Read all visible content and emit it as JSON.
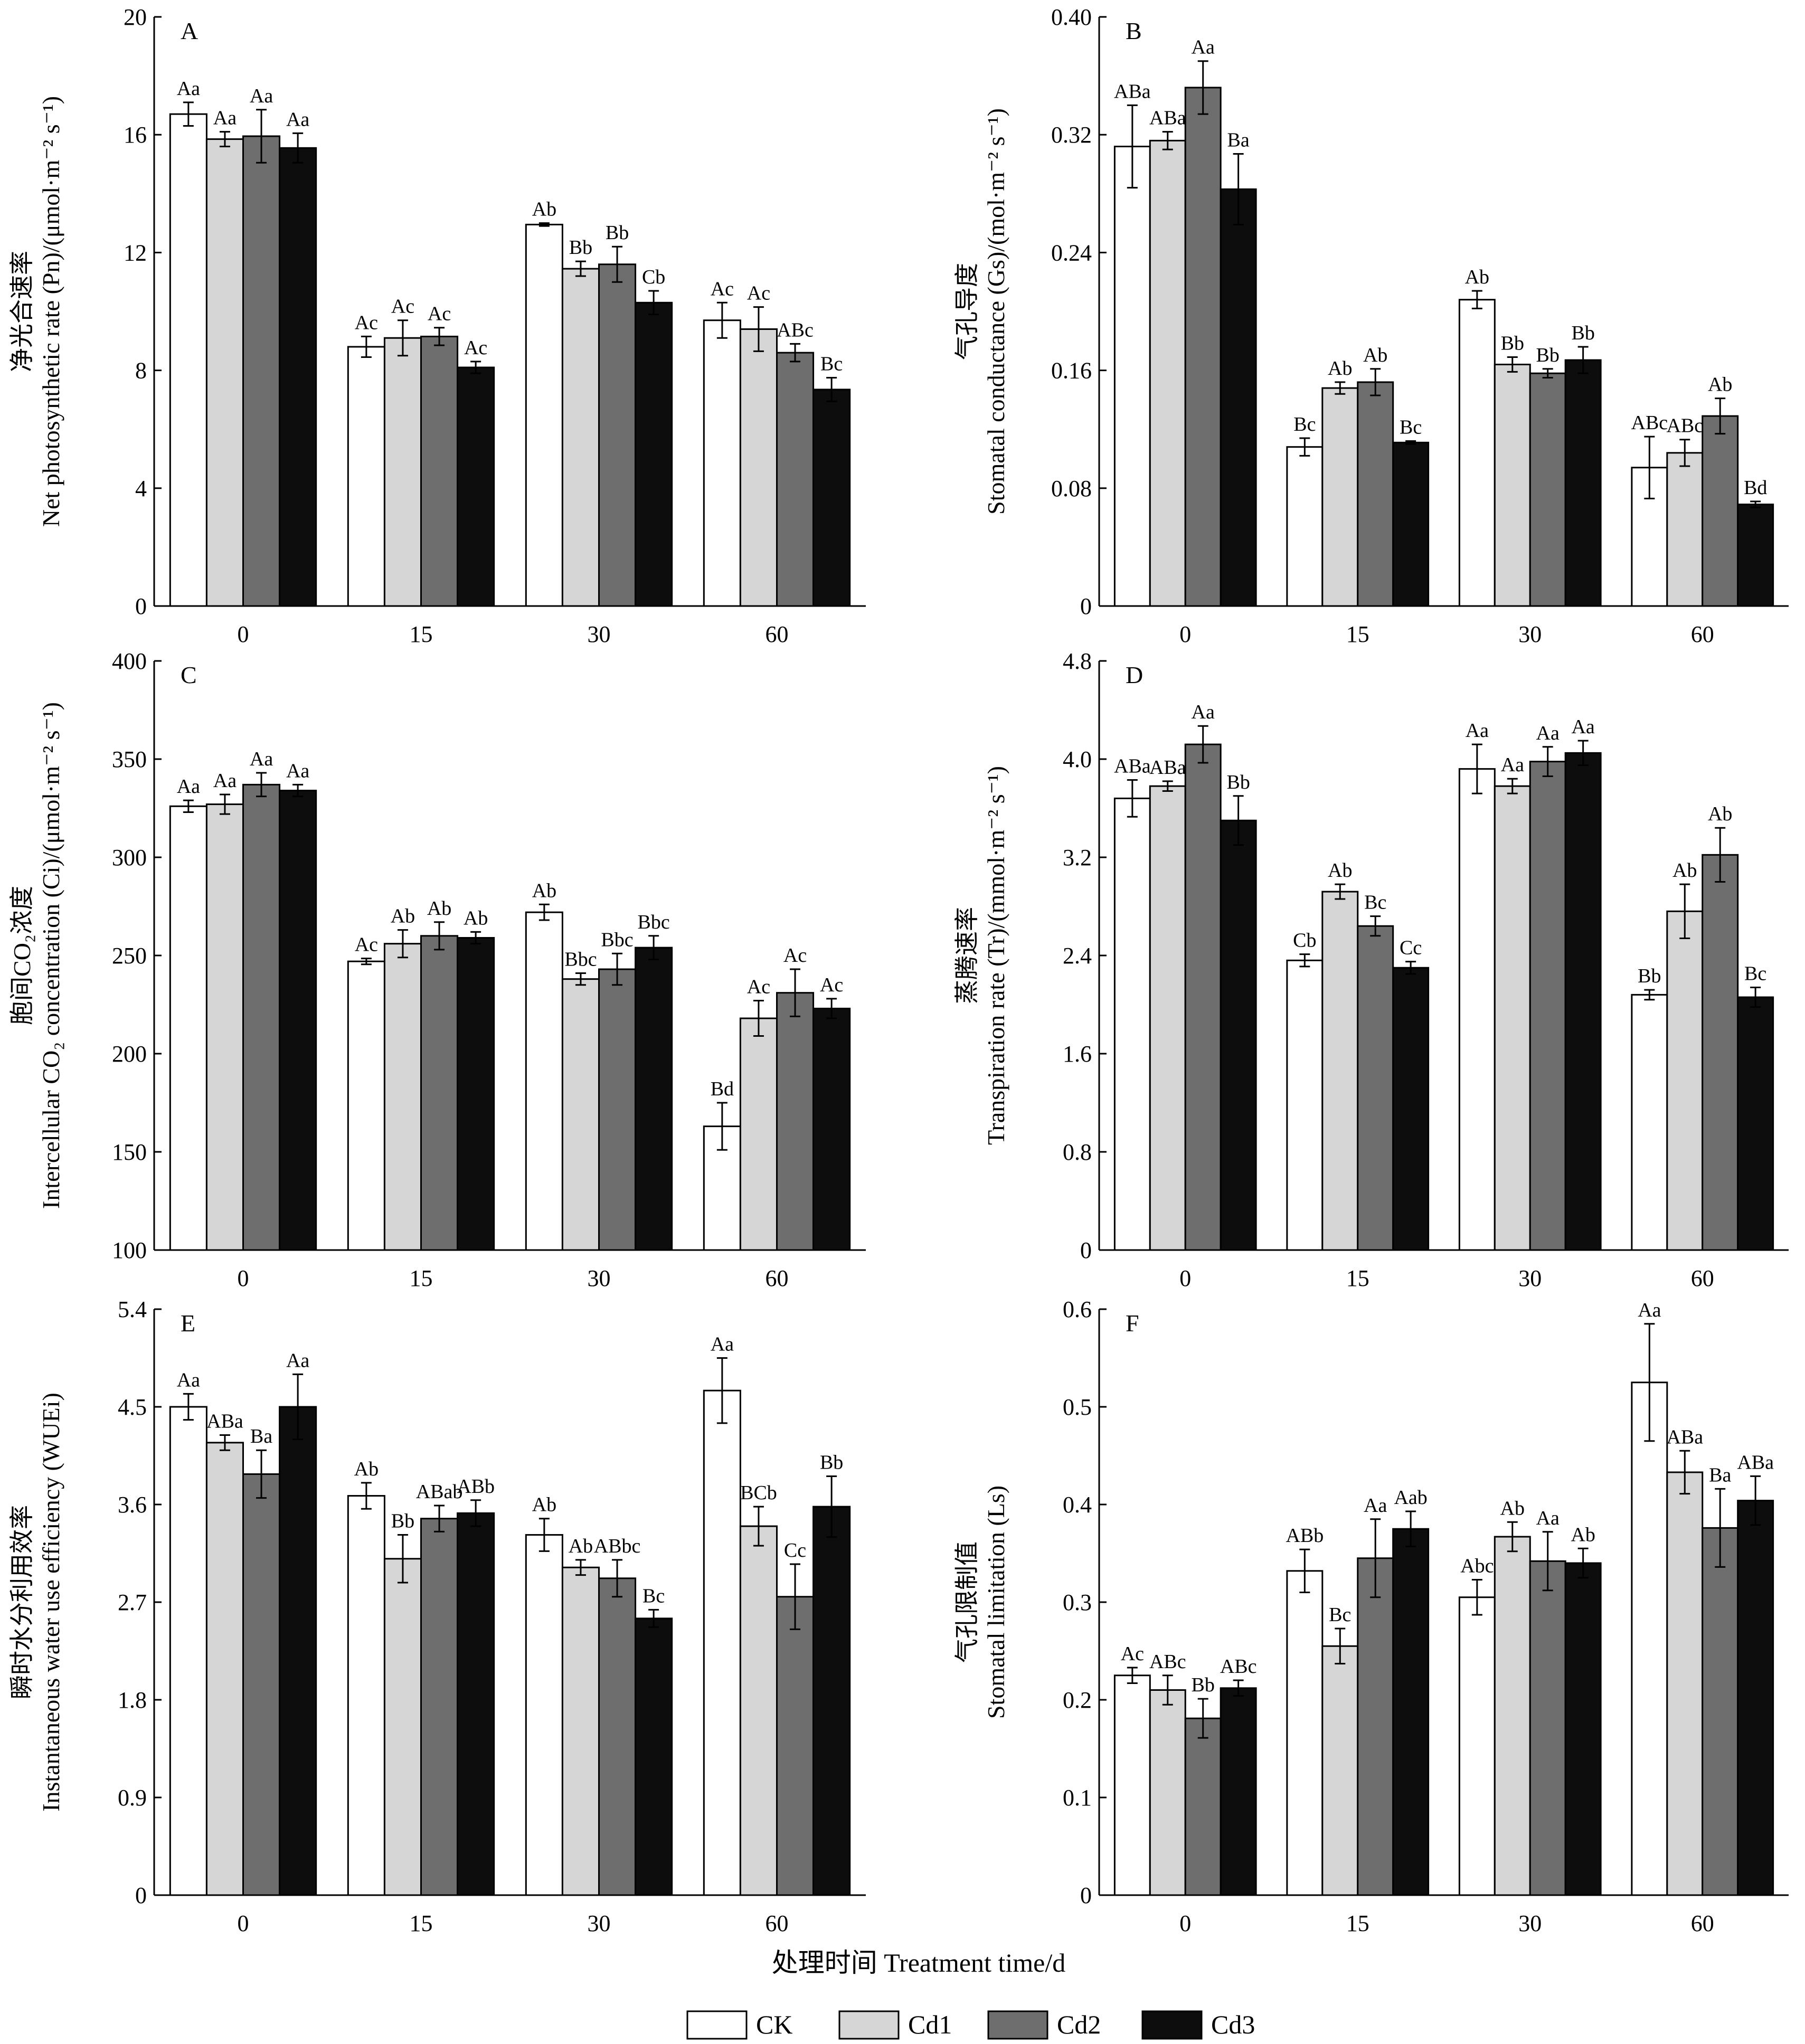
{
  "figure": {
    "x_title": "处理时间 Treatment time/d",
    "legend": [
      {
        "label": "CK",
        "color": "#ffffff"
      },
      {
        "label": "Cd1",
        "color": "#d6d6d6"
      },
      {
        "label": "Cd2",
        "color": "#6e6e6e"
      },
      {
        "label": "Cd3",
        "color": "#0d0d0d"
      }
    ]
  },
  "chart_data": [
    {
      "type": "bar",
      "panel": "A",
      "ylabel_cn": "净光合速率",
      "ylabel_en": "Net photosynthetic rate (Pn)/(μmol·m⁻² s⁻¹)",
      "ylim": [
        0,
        20
      ],
      "yticks": [
        "0",
        "4",
        "8",
        "12",
        "16",
        "20"
      ],
      "categories": [
        "0",
        "15",
        "30",
        "60"
      ],
      "series": [
        {
          "name": "CK",
          "values": [
            16.7,
            8.8,
            12.95,
            9.7
          ],
          "errors": [
            0.4,
            0.35,
            0.05,
            0.6
          ],
          "labels": [
            "Aa",
            "Ac",
            "Ab",
            "Ac"
          ]
        },
        {
          "name": "Cd1",
          "values": [
            15.85,
            9.1,
            11.45,
            9.4
          ],
          "errors": [
            0.25,
            0.6,
            0.25,
            0.75
          ],
          "labels": [
            "Aa",
            "Ac",
            "Bb",
            "Ac"
          ]
        },
        {
          "name": "Cd2",
          "values": [
            15.95,
            9.15,
            11.6,
            8.6
          ],
          "errors": [
            0.9,
            0.3,
            0.6,
            0.3
          ],
          "labels": [
            "Aa",
            "Ac",
            "Bb",
            "ABc"
          ]
        },
        {
          "name": "Cd3",
          "values": [
            15.55,
            8.1,
            10.3,
            7.35
          ],
          "errors": [
            0.5,
            0.2,
            0.4,
            0.4
          ],
          "labels": [
            "Aa",
            "Ac",
            "Cb",
            "Bc"
          ]
        }
      ]
    },
    {
      "type": "bar",
      "panel": "B",
      "ylabel_cn": "气孔导度",
      "ylabel_en": "Stomatal conductance (Gs)/(mol·m⁻² s⁻¹)",
      "ylim": [
        0,
        0.4
      ],
      "yticks": [
        "0",
        "0.08",
        "0.16",
        "0.24",
        "0.32",
        "0.40"
      ],
      "categories": [
        "0",
        "15",
        "30",
        "60"
      ],
      "series": [
        {
          "name": "CK",
          "values": [
            0.312,
            0.108,
            0.208,
            0.094
          ],
          "errors": [
            0.028,
            0.006,
            0.006,
            0.021
          ],
          "labels": [
            "ABa",
            "Bc",
            "Ab",
            "ABc"
          ]
        },
        {
          "name": "Cd1",
          "values": [
            0.316,
            0.148,
            0.164,
            0.104
          ],
          "errors": [
            0.006,
            0.004,
            0.005,
            0.009
          ],
          "labels": [
            "ABa",
            "Ab",
            "Bb",
            "ABc"
          ]
        },
        {
          "name": "Cd2",
          "values": [
            0.352,
            0.152,
            0.158,
            0.129
          ],
          "errors": [
            0.018,
            0.009,
            0.003,
            0.012
          ],
          "labels": [
            "Aa",
            "Ab",
            "Bb",
            "Ab"
          ]
        },
        {
          "name": "Cd3",
          "values": [
            0.283,
            0.111,
            0.167,
            0.069
          ],
          "errors": [
            0.024,
            0.001,
            0.009,
            0.002
          ],
          "labels": [
            "Ba",
            "Bc",
            "Bb",
            "Bd"
          ]
        }
      ]
    },
    {
      "type": "bar",
      "panel": "C",
      "ylabel_cn": "胞间CO₂浓度",
      "ylabel_en": "Intercellular CO₂ concentration (Ci)/(μmol·m⁻² s⁻¹)",
      "ylim": [
        100,
        400
      ],
      "yticks": [
        "100",
        "150",
        "200",
        "250",
        "300",
        "350",
        "400"
      ],
      "categories": [
        "0",
        "15",
        "30",
        "60"
      ],
      "series": [
        {
          "name": "CK",
          "values": [
            326,
            247,
            272,
            163
          ],
          "errors": [
            3,
            1.5,
            4,
            12
          ],
          "labels": [
            "Aa",
            "Ac",
            "Ab",
            "Bd"
          ]
        },
        {
          "name": "Cd1",
          "values": [
            327,
            256,
            238,
            218
          ],
          "errors": [
            5,
            7,
            3,
            9
          ],
          "labels": [
            "Aa",
            "Ab",
            "Bbc",
            "Ac"
          ]
        },
        {
          "name": "Cd2",
          "values": [
            337,
            260,
            243,
            231
          ],
          "errors": [
            6,
            7,
            8,
            12
          ],
          "labels": [
            "Aa",
            "Ab",
            "Bbc",
            "Ac"
          ]
        },
        {
          "name": "Cd3",
          "values": [
            334,
            259,
            254,
            223
          ],
          "errors": [
            3,
            3,
            6,
            5
          ],
          "labels": [
            "Aa",
            "Ab",
            "Bbc",
            "Ac"
          ]
        }
      ]
    },
    {
      "type": "bar",
      "panel": "D",
      "ylabel_cn": "蒸腾速率",
      "ylabel_en": "Transpiration rate (Tr)/(mmol·m⁻² s⁻¹)",
      "ylim": [
        0,
        4.8
      ],
      "yticks": [
        "0",
        "0.8",
        "1.6",
        "2.4",
        "3.2",
        "4.0",
        "4.8"
      ],
      "categories": [
        "0",
        "15",
        "30",
        "60"
      ],
      "series": [
        {
          "name": "CK",
          "values": [
            3.68,
            2.36,
            3.92,
            2.08
          ],
          "errors": [
            0.15,
            0.05,
            0.2,
            0.04
          ],
          "labels": [
            "ABa",
            "Cb",
            "Aa",
            "Bb"
          ]
        },
        {
          "name": "Cd1",
          "values": [
            3.78,
            2.92,
            3.78,
            2.76
          ],
          "errors": [
            0.04,
            0.06,
            0.06,
            0.22
          ],
          "labels": [
            "ABa",
            "Ab",
            "Aa",
            "Ab"
          ]
        },
        {
          "name": "Cd2",
          "values": [
            4.12,
            2.64,
            3.98,
            3.22
          ],
          "errors": [
            0.15,
            0.08,
            0.12,
            0.22
          ],
          "labels": [
            "Aa",
            "Bc",
            "Aa",
            "Ab"
          ]
        },
        {
          "name": "Cd3",
          "values": [
            3.5,
            2.3,
            4.05,
            2.06
          ],
          "errors": [
            0.2,
            0.05,
            0.1,
            0.08
          ],
          "labels": [
            "Bb",
            "Cc",
            "Aa",
            "Bc"
          ]
        }
      ]
    },
    {
      "type": "bar",
      "panel": "E",
      "ylabel_cn": "瞬时水分利用效率",
      "ylabel_en": "Instantaneous water use efficiency (WUEi)",
      "ylim": [
        0,
        5.4
      ],
      "yticks": [
        "0",
        "0.9",
        "1.8",
        "2.7",
        "3.6",
        "4.5",
        "5.4"
      ],
      "categories": [
        "0",
        "15",
        "30",
        "60"
      ],
      "series": [
        {
          "name": "CK",
          "values": [
            4.5,
            3.68,
            3.32,
            4.65
          ],
          "errors": [
            0.12,
            0.12,
            0.15,
            0.3
          ],
          "labels": [
            "Aa",
            "Ab",
            "Ab",
            "Aa"
          ]
        },
        {
          "name": "Cd1",
          "values": [
            4.17,
            3.1,
            3.02,
            3.4
          ],
          "errors": [
            0.07,
            0.22,
            0.07,
            0.18
          ],
          "labels": [
            "ABa",
            "Bb",
            "Ab",
            "BCb"
          ]
        },
        {
          "name": "Cd2",
          "values": [
            3.88,
            3.47,
            2.92,
            2.75
          ],
          "errors": [
            0.22,
            0.12,
            0.17,
            0.3
          ],
          "labels": [
            "Ba",
            "ABab",
            "ABbc",
            "Cc"
          ]
        },
        {
          "name": "Cd3",
          "values": [
            4.5,
            3.52,
            2.55,
            3.58
          ],
          "errors": [
            0.3,
            0.12,
            0.08,
            0.28
          ],
          "labels": [
            "Aa",
            "ABb",
            "Bc",
            "Bb"
          ]
        }
      ]
    },
    {
      "type": "bar",
      "panel": "F",
      "ylabel_cn": "气孔限制值",
      "ylabel_en": "Stomatal limitation (Ls)",
      "ylim": [
        0,
        0.6
      ],
      "yticks": [
        "0",
        "0.1",
        "0.2",
        "0.3",
        "0.4",
        "0.5",
        "0.6"
      ],
      "categories": [
        "0",
        "15",
        "30",
        "60"
      ],
      "series": [
        {
          "name": "CK",
          "values": [
            0.225,
            0.332,
            0.305,
            0.525
          ],
          "errors": [
            0.008,
            0.022,
            0.018,
            0.06
          ],
          "labels": [
            "Ac",
            "ABb",
            "Abc",
            "Aa"
          ]
        },
        {
          "name": "Cd1",
          "values": [
            0.21,
            0.255,
            0.367,
            0.433
          ],
          "errors": [
            0.015,
            0.018,
            0.015,
            0.022
          ],
          "labels": [
            "ABc",
            "Bc",
            "Ab",
            "ABa"
          ]
        },
        {
          "name": "Cd2",
          "values": [
            0.181,
            0.345,
            0.342,
            0.376
          ],
          "errors": [
            0.02,
            0.04,
            0.03,
            0.04
          ],
          "labels": [
            "Bb",
            "Aa",
            "Aa",
            "Ba"
          ]
        },
        {
          "name": "Cd3",
          "values": [
            0.212,
            0.375,
            0.34,
            0.404
          ],
          "errors": [
            0.008,
            0.018,
            0.015,
            0.025
          ],
          "labels": [
            "ABc",
            "Aab",
            "Ab",
            "ABa"
          ]
        }
      ]
    }
  ]
}
